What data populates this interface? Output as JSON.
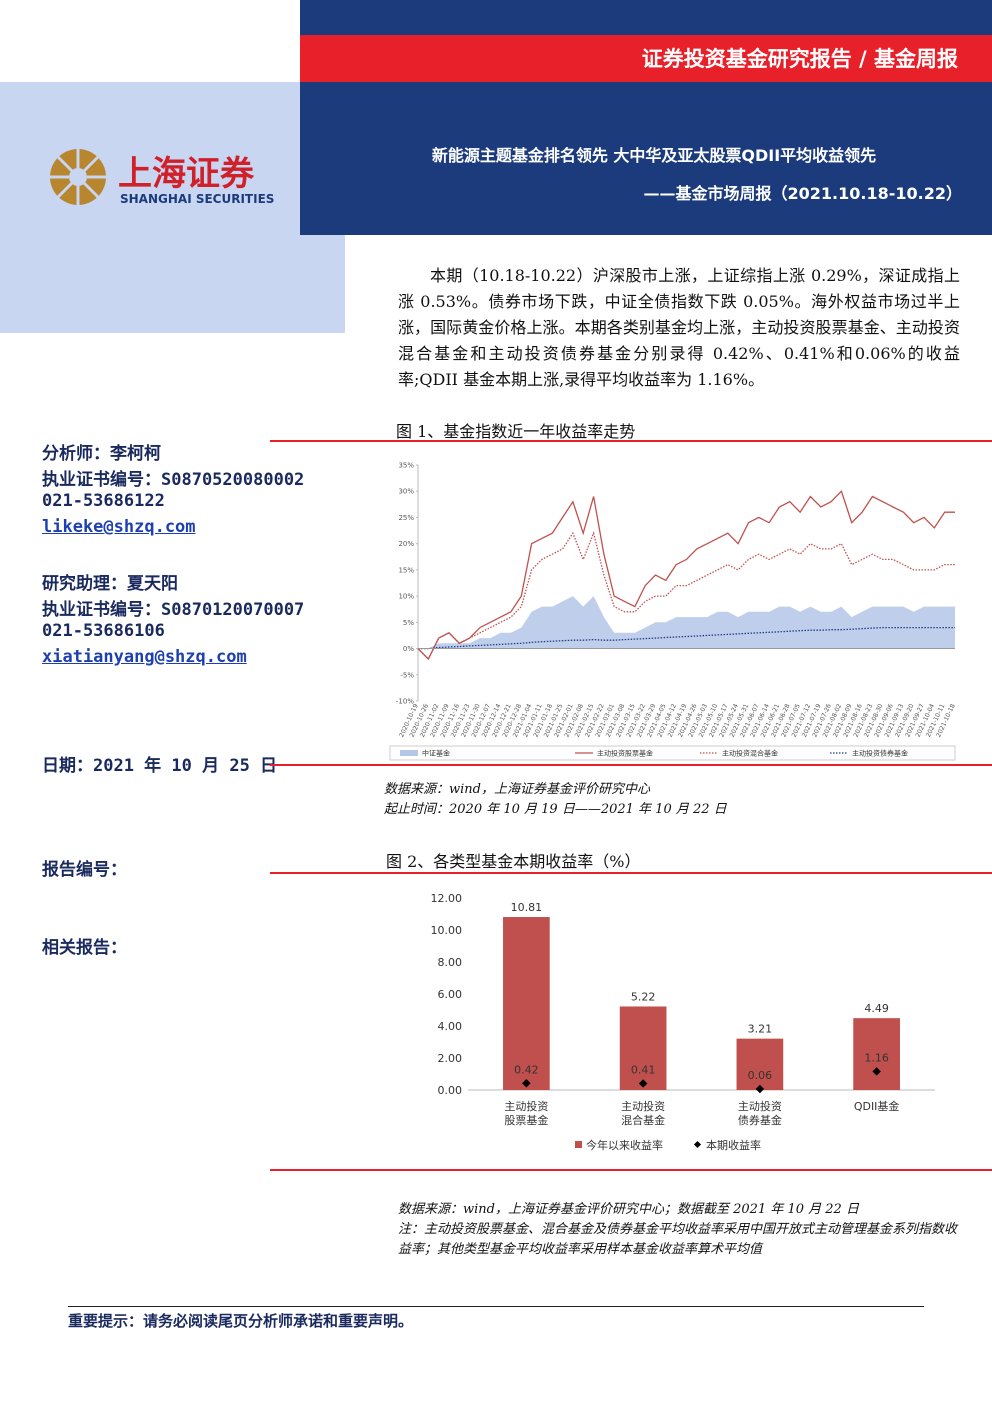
{
  "header": {
    "banner": "证券投资基金研究报告 / 基金周报",
    "logo_cn": "上海证券",
    "logo_en": "SHANGHAI SECURITIES",
    "title": "新能源主题基金排名领先 大中华及亚太股票QDII平均收益领先",
    "subtitle": "——基金市场周报（2021.10.18-10.22）"
  },
  "summary": "本期（10.18-10.22）沪深股市上涨，上证综指上涨 0.29%，深证成指上涨 0.53%。债券市场下跌，中证全债指数下跌 0.05%。海外权益市场过半上涨，国际黄金价格上涨。本期各类别基金均上涨，主动投资股票基金、主动投资混合基金和主动投资债券基金分别录得 0.42%、0.41%和0.06%的收益率;QDII 基金本期上涨,录得平均收益率为 1.16%。",
  "analysts": [
    {
      "name": "分析师：李柯柯",
      "cert": "执业证书编号：S0870520080002",
      "phone": "021-53686122",
      "email": "likeke@shzq.com"
    },
    {
      "name": "研究助理：夏天阳",
      "cert": "执业证书编号：S0870120070007",
      "phone": "021-53686106",
      "email": "xiatianyang@shzq.com"
    }
  ],
  "date": "日期：2021 年 10 月 25 日",
  "report_no": "报告编号：",
  "related": "相关报告：",
  "figures": [
    {
      "caption": "图 1、基金指数近一年收益率走势",
      "source": "数据来源：wind，上海证券基金评价研究中心",
      "period": "起止时间：2020 年 10 月 19 日——2021 年 10 月 22 日"
    },
    {
      "caption": "图 2、各类型基金本期收益率（%）",
      "source": "数据来源：wind，上海证券基金评价研究中心；数据截至 2021 年 10 月 22 日",
      "note": "注：主动投资股票基金、混合基金及债券基金平均收益率采用中国开放式主动管理基金系列指数收益率；其他类型基金平均收益率采用样本基金收益率算术平均值"
    }
  ],
  "footer": "重要提示：请务必阅读尾页分析师承诺和重要声明。",
  "chart_data": [
    {
      "type": "line",
      "x": [
        "2020-10-19",
        "2020-10-26",
        "2020-11-02",
        "2020-11-09",
        "2020-11-16",
        "2020-11-23",
        "2020-11-30",
        "2020-12-07",
        "2020-12-14",
        "2020-12-21",
        "2020-12-28",
        "2021-01-04",
        "2021-01-11",
        "2021-01-18",
        "2021-01-25",
        "2021-02-01",
        "2021-02-08",
        "2021-02-15",
        "2021-02-22",
        "2021-03-01",
        "2021-03-08",
        "2021-03-15",
        "2021-03-22",
        "2021-03-29",
        "2021-04-05",
        "2021-04-12",
        "2021-04-19",
        "2021-04-26",
        "2021-05-03",
        "2021-05-10",
        "2021-05-17",
        "2021-05-24",
        "2021-05-31",
        "2021-06-07",
        "2021-06-14",
        "2021-06-21",
        "2021-06-28",
        "2021-07-05",
        "2021-07-12",
        "2021-07-19",
        "2021-07-26",
        "2021-08-02",
        "2021-08-09",
        "2021-08-16",
        "2021-08-23",
        "2021-08-30",
        "2021-09-06",
        "2021-09-13",
        "2021-09-20",
        "2021-09-27",
        "2021-10-04",
        "2021-10-11",
        "2021-10-18"
      ],
      "series": [
        {
          "name": "中证基金",
          "style": "area",
          "color": "#b4c7e7",
          "values": [
            0,
            0,
            1,
            1,
            1,
            1,
            2,
            2,
            3,
            3,
            4,
            7,
            8,
            8,
            9,
            10,
            8,
            10,
            6,
            3,
            3,
            3,
            4,
            5,
            5,
            6,
            6,
            6,
            6,
            7,
            7,
            6,
            7,
            7,
            7,
            8,
            8,
            7,
            8,
            7,
            7,
            8,
            6,
            7,
            8,
            8,
            8,
            8,
            7,
            8,
            8,
            8,
            8
          ]
        },
        {
          "name": "主动投资股票基金",
          "style": "solid",
          "color": "#c0504d",
          "values": [
            0,
            -2,
            2,
            3,
            1,
            2,
            4,
            5,
            6,
            7,
            10,
            20,
            21,
            22,
            25,
            28,
            22,
            29,
            18,
            10,
            9,
            8,
            12,
            14,
            13,
            16,
            17,
            19,
            20,
            21,
            22,
            20,
            24,
            25,
            24,
            27,
            28,
            26,
            29,
            27,
            28,
            30,
            24,
            26,
            29,
            28,
            27,
            26,
            24,
            25,
            23,
            26,
            26
          ]
        },
        {
          "name": "主动投资混合基金",
          "style": "dotted",
          "color": "#c0504d",
          "values": [
            0,
            -2,
            2,
            3,
            1,
            2,
            3,
            4,
            5,
            6,
            8,
            15,
            17,
            18,
            19,
            22,
            17,
            22,
            14,
            8,
            7,
            7,
            9,
            10,
            10,
            12,
            12,
            13,
            14,
            15,
            16,
            15,
            17,
            18,
            17,
            18,
            19,
            18,
            20,
            19,
            19,
            20,
            16,
            17,
            18,
            17,
            17,
            16,
            15,
            15,
            15,
            16,
            16
          ]
        },
        {
          "name": "主动投资债券基金",
          "style": "dotted",
          "color": "#1f3c88",
          "values": [
            0,
            0,
            0.2,
            0.3,
            0.4,
            0.5,
            0.6,
            0.7,
            0.8,
            0.9,
            1.0,
            1.2,
            1.3,
            1.4,
            1.5,
            1.6,
            1.6,
            1.7,
            1.6,
            1.6,
            1.7,
            1.8,
            1.9,
            2.0,
            2.1,
            2.2,
            2.3,
            2.4,
            2.5,
            2.6,
            2.7,
            2.8,
            2.9,
            3.0,
            3.1,
            3.2,
            3.3,
            3.4,
            3.5,
            3.5,
            3.6,
            3.6,
            3.7,
            3.8,
            3.9,
            4.0,
            4.0,
            4.0,
            4.0,
            4.0,
            4.0,
            4.0,
            4.0
          ]
        }
      ],
      "ylim": [
        -10,
        35
      ],
      "yticks": [
        {
          "value": -10,
          "label": "-10%"
        },
        {
          "value": -5,
          "label": "-5%"
        },
        {
          "value": 0,
          "label": "0%"
        },
        {
          "value": 5,
          "label": "5%"
        },
        {
          "value": 10,
          "label": "10%"
        },
        {
          "value": 15,
          "label": "15%"
        },
        {
          "value": 20,
          "label": "20%"
        },
        {
          "value": 25,
          "label": "25%"
        },
        {
          "value": 30,
          "label": "30%"
        },
        {
          "value": 35,
          "label": "35%"
        }
      ],
      "grid": false,
      "legend": "bottom"
    },
    {
      "type": "bar",
      "categories": [
        "主动投资股票基金",
        "主动投资混合基金",
        "主动投资债券基金",
        "QDII基金"
      ],
      "series": [
        {
          "name": "今年以来收益率",
          "color": "#c0504d",
          "values": [
            10.81,
            5.22,
            3.21,
            4.49
          ]
        },
        {
          "name": "本期收益率",
          "type": "scatter",
          "color": "#000000",
          "values": [
            0.42,
            0.41,
            0.06,
            1.16
          ]
        }
      ],
      "ylim": [
        0,
        12
      ],
      "yticks": [
        {
          "value": 0,
          "label": "0.00"
        },
        {
          "value": 2,
          "label": "2.00"
        },
        {
          "value": 4,
          "label": "4.00"
        },
        {
          "value": 6,
          "label": "6.00"
        },
        {
          "value": 8,
          "label": "8.00"
        },
        {
          "value": 10,
          "label": "10.00"
        },
        {
          "value": 12,
          "label": "12.00"
        }
      ],
      "grid": false,
      "show_value_labels": true,
      "legend": "bottom"
    }
  ]
}
